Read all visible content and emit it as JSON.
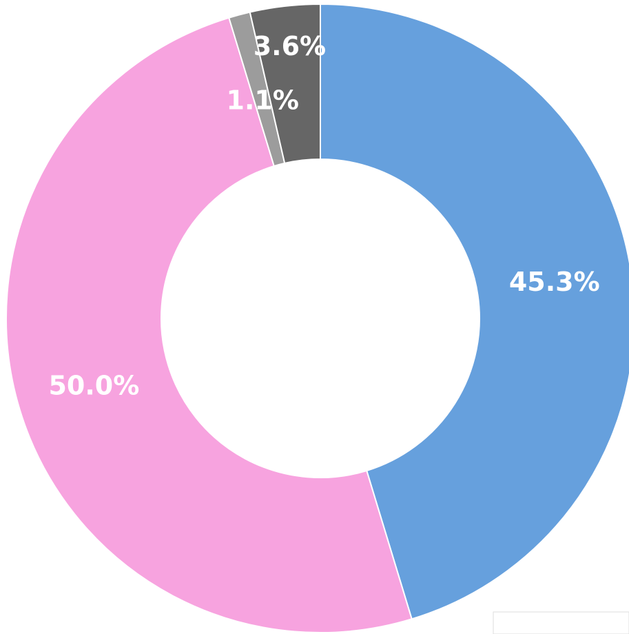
{
  "chart_data": {
    "type": "donut",
    "series": [
      {
        "color": "#66a0dd",
        "values": [
          45.3,
          50.0,
          1.1,
          3.6
        ],
        "value_labels": [
          "45.3%",
          "50.0%",
          "1.1%",
          "3.6%"
        ]
      }
    ],
    "colors": [
      "#66a0dd",
      "#f7a3df",
      "#9c9c9c",
      "#666666"
    ]
  }
}
